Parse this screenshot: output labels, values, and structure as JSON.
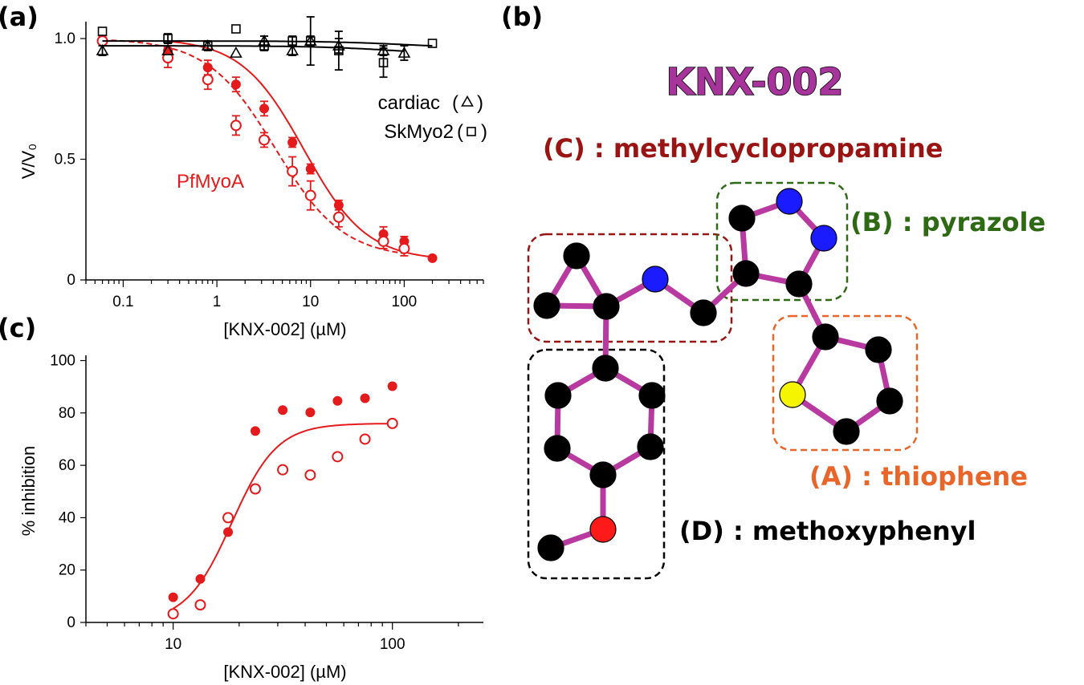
{
  "panels": {
    "a": "(a)",
    "b": "(b)",
    "c": "(c)"
  },
  "colors": {
    "pfmyoa": "#e41a1c",
    "bond": "#b8399f",
    "carbon": "#000000",
    "nitrogen": "#1b1bff",
    "oxygen": "#ff1a1a",
    "sulfur": "#f5f500",
    "group_A": "#e8662a",
    "group_B": "#2d6a13",
    "group_C": "#9b1414",
    "group_D": "#000000"
  },
  "chart_data": [
    {
      "panel": "(a)",
      "type": "scatter",
      "xscale": "log",
      "xlim": [
        0.04,
        700
      ],
      "ylim": [
        0,
        1.07
      ],
      "xlabel": "[KNX-002] (µM)",
      "ylabel": "V/V₀",
      "xticklabels": [
        {
          "v": 0.1,
          "t": "0.1"
        },
        {
          "v": 1,
          "t": "1"
        },
        {
          "v": 10,
          "t": "10"
        },
        {
          "v": 100,
          "t": "100"
        }
      ],
      "yticklabels": [
        {
          "v": 0,
          "t": "0"
        },
        {
          "v": 0.5,
          "t": "0.5"
        },
        {
          "v": 1.0,
          "t": "1.0"
        }
      ],
      "annotations": {
        "cardiac": "cardiac",
        "skmyo2": "SkMyo2",
        "pfmyoa": "PfMyoA"
      },
      "series": [
        {
          "key": "pf_filled",
          "marker": "filled-circle",
          "x": [
            0.3,
            0.8,
            1.6,
            3.2,
            6.4,
            10,
            20,
            60,
            100,
            200
          ],
          "y": [
            0.95,
            0.88,
            0.81,
            0.71,
            0.57,
            0.46,
            0.31,
            0.19,
            0.16,
            0.09
          ],
          "err": [
            0.03,
            0.03,
            0.03,
            0.03,
            0.02,
            0.02,
            0.02,
            0.03,
            0.02,
            0
          ],
          "fit": {
            "top": 1.0,
            "bottom": 0.08,
            "ic50": 8.5,
            "hill": 1.3,
            "dash": false
          }
        },
        {
          "key": "pf_open",
          "marker": "open-circle",
          "x": [
            0.06,
            0.3,
            0.8,
            1.6,
            3.2,
            6.4,
            10,
            20,
            60,
            100
          ],
          "y": [
            0.99,
            0.92,
            0.83,
            0.64,
            0.58,
            0.45,
            0.35,
            0.26,
            0.16,
            0.13
          ],
          "err": [
            0.02,
            0.04,
            0.04,
            0.04,
            0.03,
            0.06,
            0.06,
            0.04,
            0.03,
            0.03
          ],
          "fit": {
            "top": 1.0,
            "bottom": 0.09,
            "ic50": 4.2,
            "hill": 1.2,
            "dash": true
          }
        },
        {
          "key": "cardiac",
          "marker": "open-triangle",
          "x": [
            0.06,
            0.3,
            0.8,
            1.6,
            3.2,
            6.4,
            10,
            20,
            60,
            100
          ],
          "y": [
            0.95,
            0.95,
            0.97,
            0.94,
            0.99,
            0.95,
            0.99,
            0.97,
            0.95,
            0.94
          ],
          "err": [
            0.02,
            0,
            0,
            0,
            0.02,
            0.02,
            0.02,
            0.03,
            0.02,
            0.03
          ],
          "fit": {
            "top": 0.97,
            "bottom": 0.93,
            "ic50": 80,
            "hill": 1,
            "dash": false
          }
        },
        {
          "key": "skmyo2",
          "marker": "open-square",
          "x": [
            0.06,
            0.3,
            0.8,
            1.6,
            3.2,
            6.4,
            10,
            20,
            60,
            200
          ],
          "y": [
            1.03,
            1.0,
            0.97,
            1.04,
            0.97,
            0.99,
            0.99,
            0.95,
            0.9,
            0.98
          ],
          "err": [
            0,
            0.02,
            0.02,
            0,
            0.02,
            0.02,
            0.1,
            0.08,
            0.06,
            0
          ],
          "fit": {
            "top": 0.99,
            "bottom": 0.96,
            "ic50": 100,
            "hill": 1,
            "dash": false
          }
        }
      ]
    },
    {
      "panel": "(c)",
      "type": "scatter",
      "xscale": "log",
      "xlim": [
        4,
        260
      ],
      "ylim": [
        0,
        102
      ],
      "xlabel": "[KNX-002] (µM)",
      "ylabel": "% inhibition",
      "xticklabels": [
        {
          "v": 10,
          "t": "10"
        },
        {
          "v": 100,
          "t": "100"
        }
      ],
      "yticklabels": [
        {
          "v": 0,
          "t": "0"
        },
        {
          "v": 20,
          "t": "20"
        },
        {
          "v": 40,
          "t": "40"
        },
        {
          "v": 60,
          "t": "60"
        },
        {
          "v": 80,
          "t": "80"
        },
        {
          "v": 100,
          "t": "100"
        }
      ],
      "series": [
        {
          "key": "filled",
          "marker": "filled-circle",
          "x": [
            10,
            13.3,
            17.8,
            23.7,
            31.6,
            42.2,
            56.2,
            75,
            100
          ],
          "y": [
            9.6,
            16.6,
            34.5,
            73.1,
            81.1,
            80.2,
            84.6,
            85.6,
            90.2
          ]
        },
        {
          "key": "open",
          "marker": "open-circle",
          "x": [
            10,
            13.3,
            17.8,
            23.7,
            31.6,
            42.2,
            56.2,
            75,
            100
          ],
          "y": [
            3.3,
            6.7,
            40,
            51,
            58.3,
            56.3,
            63.3,
            70,
            76
          ]
        }
      ],
      "fit": {
        "top": 76,
        "bottom": 0,
        "ec50": 18.5,
        "hill": 4.2
      }
    }
  ],
  "molecule": {
    "title": "KNX-002",
    "groups": [
      {
        "key": "C",
        "label": "(C) : methylcyclopropamine"
      },
      {
        "key": "B",
        "label": "(B) : pyrazole"
      },
      {
        "key": "A",
        "label": "(A) : thiophene"
      },
      {
        "key": "D",
        "label": "(D) : methoxyphenyl"
      }
    ],
    "atoms": [
      {
        "id": "cp_top",
        "el": "C"
      },
      {
        "id": "cp_left",
        "el": "C"
      },
      {
        "id": "cp_right",
        "el": "C"
      },
      {
        "id": "n_amine",
        "el": "N"
      },
      {
        "id": "ch2",
        "el": "C"
      },
      {
        "id": "pz_c4",
        "el": "C"
      },
      {
        "id": "pz_c5",
        "el": "C"
      },
      {
        "id": "pz_n1",
        "el": "N"
      },
      {
        "id": "pz_n2",
        "el": "N"
      },
      {
        "id": "pz_c3",
        "el": "C"
      },
      {
        "id": "th_c2",
        "el": "C"
      },
      {
        "id": "th_c3",
        "el": "C"
      },
      {
        "id": "th_c4",
        "el": "C"
      },
      {
        "id": "th_c5",
        "el": "C"
      },
      {
        "id": "th_s",
        "el": "S"
      },
      {
        "id": "ph_c1",
        "el": "C"
      },
      {
        "id": "ph_c2",
        "el": "C"
      },
      {
        "id": "ph_c3",
        "el": "C"
      },
      {
        "id": "ph_c4",
        "el": "C"
      },
      {
        "id": "ph_c5",
        "el": "C"
      },
      {
        "id": "ph_c6",
        "el": "C"
      },
      {
        "id": "o_meth",
        "el": "O"
      },
      {
        "id": "ch3",
        "el": "C"
      }
    ],
    "bonds": [
      [
        "cp_top",
        "cp_left"
      ],
      [
        "cp_top",
        "cp_right"
      ],
      [
        "cp_left",
        "cp_right"
      ],
      [
        "cp_right",
        "n_amine"
      ],
      [
        "n_amine",
        "ch2"
      ],
      [
        "ch2",
        "pz_c4"
      ],
      [
        "pz_c4",
        "pz_c5"
      ],
      [
        "pz_c5",
        "pz_n1"
      ],
      [
        "pz_n1",
        "pz_n2"
      ],
      [
        "pz_n2",
        "pz_c3"
      ],
      [
        "pz_c3",
        "pz_c4"
      ],
      [
        "pz_c3",
        "th_c2"
      ],
      [
        "th_c2",
        "th_c3"
      ],
      [
        "th_c3",
        "th_c4"
      ],
      [
        "th_c4",
        "th_c5"
      ],
      [
        "th_c5",
        "th_s"
      ],
      [
        "th_s",
        "th_c2"
      ],
      [
        "cp_right",
        "ph_c1"
      ],
      [
        "ph_c1",
        "ph_c2"
      ],
      [
        "ph_c2",
        "ph_c3"
      ],
      [
        "ph_c3",
        "ph_c4"
      ],
      [
        "ph_c4",
        "ph_c5"
      ],
      [
        "ph_c5",
        "ph_c6"
      ],
      [
        "ph_c6",
        "ph_c1"
      ],
      [
        "ph_c4",
        "o_meth"
      ],
      [
        "o_meth",
        "ch3"
      ]
    ]
  }
}
